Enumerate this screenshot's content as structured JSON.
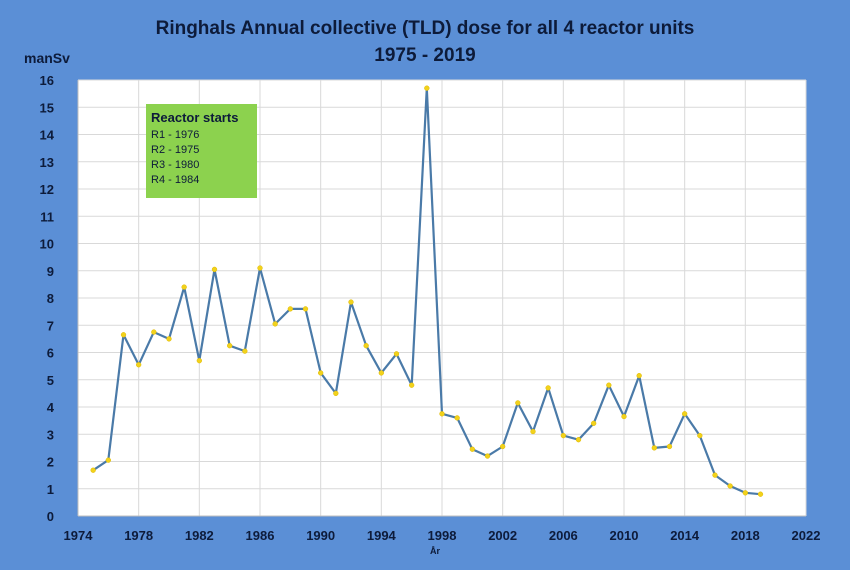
{
  "chart_data": {
    "type": "line",
    "title": "Ringhals Annual collective (TLD) dose for all 4 reactor units",
    "subtitle": "1975 - 2019",
    "ylabel": "manSv",
    "xlabel": "År",
    "xlim": [
      1974,
      2022
    ],
    "ylim": [
      0,
      16
    ],
    "xticks": [
      1974,
      1978,
      1982,
      1986,
      1990,
      1994,
      1998,
      2002,
      2006,
      2010,
      2014,
      2018,
      2022
    ],
    "yticks": [
      0,
      1,
      2,
      3,
      4,
      5,
      6,
      7,
      8,
      9,
      10,
      11,
      12,
      13,
      14,
      15,
      16
    ],
    "grid": true,
    "colors": {
      "line": "#4a7aa8",
      "marker": "#f2d21b",
      "legend_bg": "#8cd24e",
      "background": "#5b8fd6"
    },
    "series": [
      {
        "x": [
          1975,
          1976,
          1977,
          1978,
          1979,
          1980,
          1981,
          1982,
          1983,
          1984,
          1985,
          1986,
          1987,
          1988,
          1989,
          1990,
          1991,
          1992,
          1993,
          1994,
          1995,
          1996,
          1997,
          1998,
          1999,
          2000,
          2001,
          2002,
          2003,
          2004,
          2005,
          2006,
          2007,
          2008,
          2009,
          2010,
          2011,
          2012,
          2013,
          2014,
          2015,
          2016,
          2017,
          2018,
          2019
        ],
        "values": [
          1.68,
          2.05,
          6.65,
          5.55,
          6.75,
          6.5,
          8.4,
          5.7,
          9.05,
          6.25,
          6.05,
          9.1,
          7.05,
          7.6,
          7.6,
          5.25,
          4.5,
          7.85,
          6.25,
          5.25,
          5.95,
          4.8,
          15.7,
          3.75,
          3.6,
          2.45,
          2.2,
          2.55,
          4.15,
          3.1,
          4.7,
          2.95,
          2.8,
          3.4,
          4.8,
          3.65,
          5.15,
          2.5,
          2.55,
          3.75,
          2.95,
          1.5,
          1.1,
          0.85,
          0.8
        ]
      }
    ]
  },
  "legend": {
    "title": "Reactor starts",
    "items": [
      "R1 - 1976",
      "R2 - 1975",
      "R3 - 1980",
      "R4 - 1984"
    ]
  }
}
